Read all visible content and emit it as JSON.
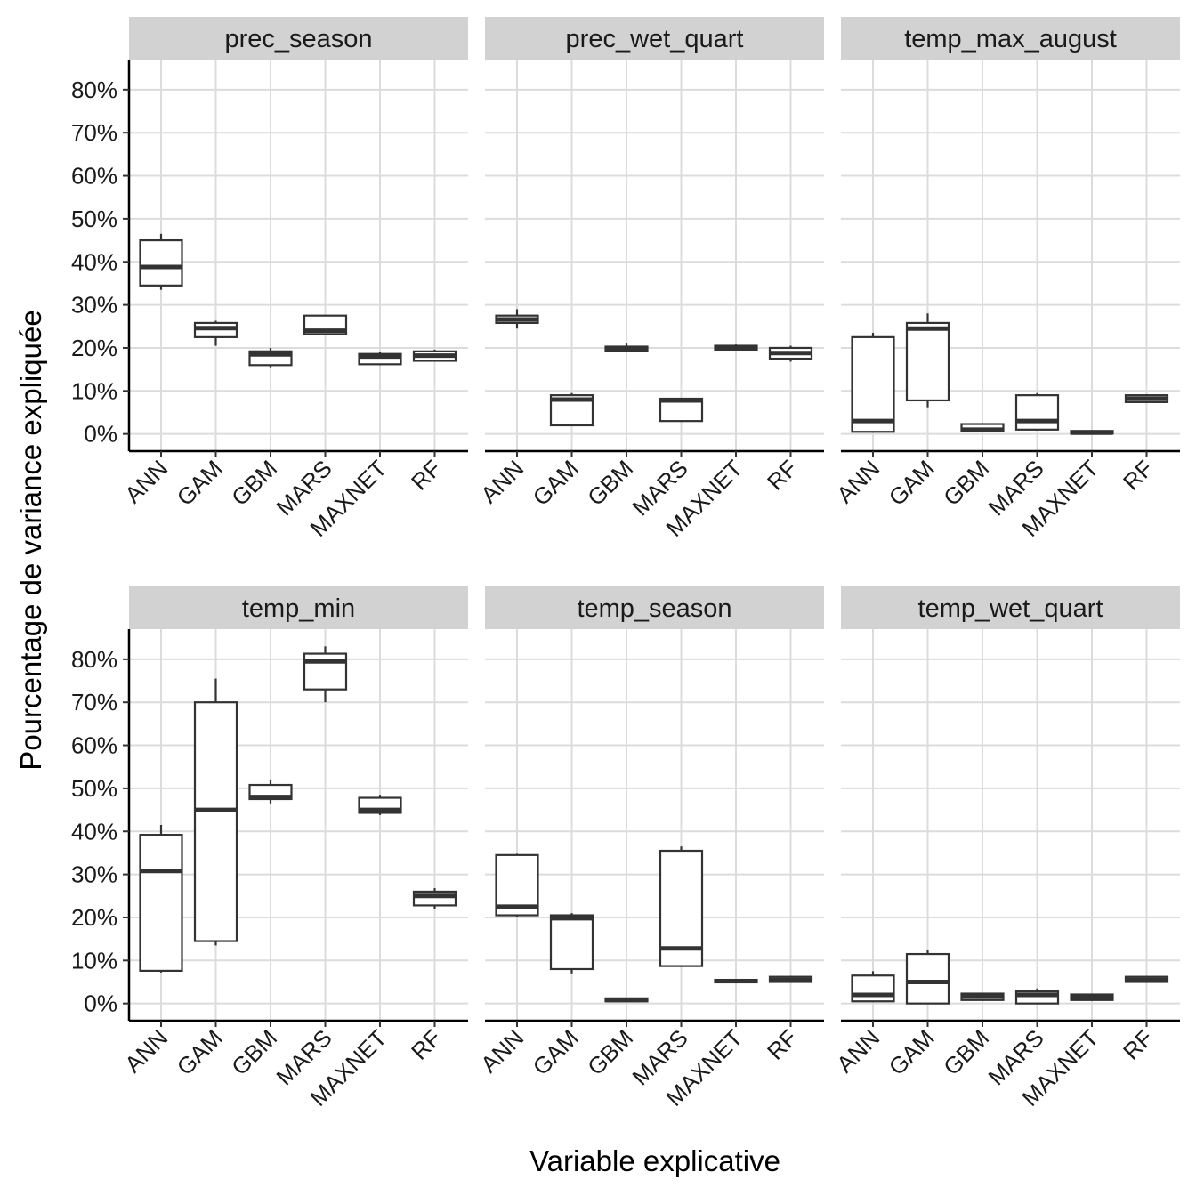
{
  "chart_data": {
    "type": "boxplot",
    "xlabel": "Variable explicative",
    "ylabel": "Pourcentage de variance expliquée",
    "ylim": [
      -4,
      87
    ],
    "yticks": [
      0,
      10,
      20,
      30,
      40,
      50,
      60,
      70,
      80
    ],
    "ytick_labels": [
      "0%",
      "10%",
      "20%",
      "30%",
      "40%",
      "50%",
      "60%",
      "70%",
      "80%"
    ],
    "categories": [
      "ANN",
      "GAM",
      "GBM",
      "MARS",
      "MAXNET",
      "RF"
    ],
    "grid": true,
    "facets": [
      {
        "title": "prec_season",
        "boxes": [
          {
            "category": "ANN",
            "min": 33.5,
            "q1": 34.5,
            "median": 38.8,
            "q3": 45.0,
            "max": 46.5
          },
          {
            "category": "GAM",
            "min": 20.5,
            "q1": 22.5,
            "median": 24.6,
            "q3": 25.8,
            "max": 26.3
          },
          {
            "category": "GBM",
            "min": 15.5,
            "q1": 16.0,
            "median": 18.5,
            "q3": 19.2,
            "max": 20.0
          },
          {
            "category": "MARS",
            "min": 23.0,
            "q1": 23.2,
            "median": 24.0,
            "q3": 27.5,
            "max": 27.5
          },
          {
            "category": "MAXNET",
            "min": 16.0,
            "q1": 16.2,
            "median": 18.0,
            "q3": 18.6,
            "max": 19.0
          },
          {
            "category": "RF",
            "min": 16.8,
            "q1": 17.0,
            "median": 18.2,
            "q3": 19.2,
            "max": 19.6
          }
        ]
      },
      {
        "title": "prec_wet_quart",
        "boxes": [
          {
            "category": "ANN",
            "min": 24.5,
            "q1": 25.8,
            "median": 26.6,
            "q3": 27.5,
            "max": 29.0
          },
          {
            "category": "GAM",
            "min": 1.8,
            "q1": 2.0,
            "median": 8.0,
            "q3": 9.0,
            "max": 9.5
          },
          {
            "category": "GBM",
            "min": 19.0,
            "q1": 19.3,
            "median": 19.8,
            "q3": 20.3,
            "max": 21.0
          },
          {
            "category": "MARS",
            "min": 2.8,
            "q1": 3.0,
            "median": 7.8,
            "q3": 8.2,
            "max": 8.4
          },
          {
            "category": "MAXNET",
            "min": 19.5,
            "q1": 19.6,
            "median": 20.0,
            "q3": 20.5,
            "max": 20.8
          },
          {
            "category": "RF",
            "min": 16.8,
            "q1": 17.5,
            "median": 18.8,
            "q3": 20.0,
            "max": 20.5
          }
        ]
      },
      {
        "title": "temp_max_august",
        "boxes": [
          {
            "category": "ANN",
            "min": 0.3,
            "q1": 0.5,
            "median": 3.0,
            "q3": 22.5,
            "max": 23.5
          },
          {
            "category": "GAM",
            "min": 6.2,
            "q1": 7.8,
            "median": 24.5,
            "q3": 25.8,
            "max": 28.0
          },
          {
            "category": "GBM",
            "min": 0.4,
            "q1": 0.6,
            "median": 1.0,
            "q3": 2.3,
            "max": 2.5
          },
          {
            "category": "MARS",
            "min": 0.8,
            "q1": 1.0,
            "median": 3.0,
            "q3": 9.0,
            "max": 9.5
          },
          {
            "category": "MAXNET",
            "min": 0.0,
            "q1": 0.1,
            "median": 0.3,
            "q3": 0.7,
            "max": 0.9
          },
          {
            "category": "RF",
            "min": 7.2,
            "q1": 7.4,
            "median": 8.2,
            "q3": 9.0,
            "max": 9.2
          }
        ]
      },
      {
        "title": "temp_min",
        "boxes": [
          {
            "category": "ANN",
            "min": 7.2,
            "q1": 7.6,
            "median": 30.8,
            "q3": 39.2,
            "max": 41.5
          },
          {
            "category": "GAM",
            "min": 13.5,
            "q1": 14.5,
            "median": 45.0,
            "q3": 70.0,
            "max": 75.5
          },
          {
            "category": "GBM",
            "min": 46.5,
            "q1": 47.5,
            "median": 48.0,
            "q3": 50.8,
            "max": 52.0
          },
          {
            "category": "MARS",
            "min": 70.0,
            "q1": 73.0,
            "median": 79.5,
            "q3": 81.3,
            "max": 83.0
          },
          {
            "category": "MAXNET",
            "min": 43.8,
            "q1": 44.3,
            "median": 45.0,
            "q3": 47.8,
            "max": 48.5
          },
          {
            "category": "RF",
            "min": 22.0,
            "q1": 22.8,
            "median": 25.0,
            "q3": 26.0,
            "max": 26.8
          }
        ]
      },
      {
        "title": "temp_season",
        "boxes": [
          {
            "category": "ANN",
            "min": 20.0,
            "q1": 20.5,
            "median": 22.5,
            "q3": 34.5,
            "max": 34.8
          },
          {
            "category": "GAM",
            "min": 7.0,
            "q1": 8.0,
            "median": 19.8,
            "q3": 20.5,
            "max": 21.0
          },
          {
            "category": "GBM",
            "min": 0.4,
            "q1": 0.5,
            "median": 0.8,
            "q3": 1.2,
            "max": 1.3
          },
          {
            "category": "MARS",
            "min": 8.5,
            "q1": 8.7,
            "median": 12.8,
            "q3": 35.5,
            "max": 36.5
          },
          {
            "category": "MAXNET",
            "min": 4.8,
            "q1": 4.9,
            "median": 5.2,
            "q3": 5.5,
            "max": 5.6
          },
          {
            "category": "RF",
            "min": 4.8,
            "q1": 5.0,
            "median": 5.5,
            "q3": 6.2,
            "max": 6.4
          }
        ]
      },
      {
        "title": "temp_wet_quart",
        "boxes": [
          {
            "category": "ANN",
            "min": 0.3,
            "q1": 0.5,
            "median": 2.0,
            "q3": 6.5,
            "max": 7.5
          },
          {
            "category": "GAM",
            "min": 0.0,
            "q1": 0.0,
            "median": 5.0,
            "q3": 11.5,
            "max": 12.5
          },
          {
            "category": "GBM",
            "min": 0.6,
            "q1": 0.8,
            "median": 1.6,
            "q3": 2.3,
            "max": 2.4
          },
          {
            "category": "MARS",
            "min": 0.0,
            "q1": 0.0,
            "median": 2.0,
            "q3": 2.8,
            "max": 3.5
          },
          {
            "category": "MAXNET",
            "min": 0.6,
            "q1": 0.8,
            "median": 1.4,
            "q3": 2.1,
            "max": 2.2
          },
          {
            "category": "RF",
            "min": 4.8,
            "q1": 5.0,
            "median": 5.5,
            "q3": 6.2,
            "max": 6.4
          }
        ]
      }
    ]
  }
}
